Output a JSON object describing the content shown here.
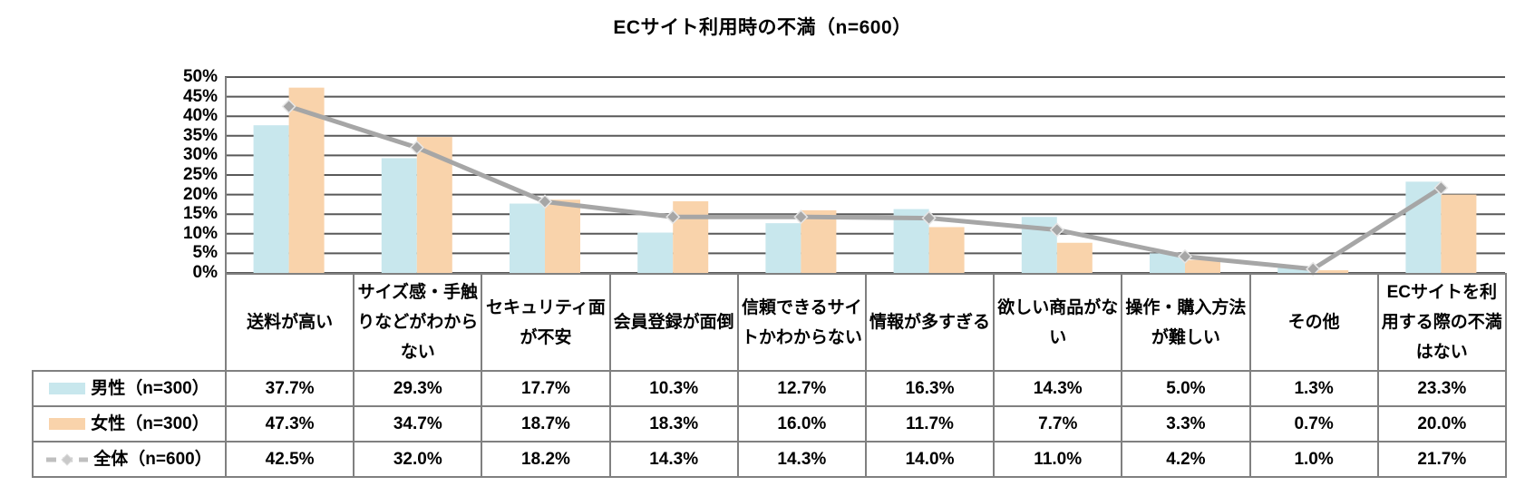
{
  "title": "ECサイト利用時の不満（n=600）",
  "chart_data": {
    "type": "bar",
    "title": "ECサイト利用時の不満（n=600）",
    "categories": [
      "送料が高い",
      "サイズ感・手触りなどがわからない",
      "セキュリティ面が不安",
      "会員登録が面倒",
      "信頼できるサイトかわからない",
      "情報が多すぎる",
      "欲しい商品がない",
      "操作・購入方法が難しい",
      "その他",
      "ECサイトを利用する際の不満はない"
    ],
    "series": [
      {
        "name": "男性（n=300）",
        "type": "bar",
        "color": "#c8e7ed",
        "values": [
          37.7,
          29.3,
          17.7,
          10.3,
          12.7,
          16.3,
          14.3,
          5.0,
          1.3,
          23.3
        ]
      },
      {
        "name": "女性（n=300）",
        "type": "bar",
        "color": "#f9d3ab",
        "values": [
          47.3,
          34.7,
          18.7,
          18.3,
          16.0,
          11.7,
          7.7,
          3.3,
          0.7,
          20.0
        ]
      },
      {
        "name": "全体（n=600）",
        "type": "line",
        "color": "#a6a6a6",
        "values": [
          42.5,
          32.0,
          18.2,
          14.3,
          14.3,
          14.0,
          11.0,
          4.2,
          1.0,
          21.7
        ]
      }
    ],
    "ylim": [
      0,
      50
    ],
    "ytick_step": 5,
    "yticks": [
      "0%",
      "5%",
      "10%",
      "15%",
      "20%",
      "25%",
      "30%",
      "35%",
      "40%",
      "45%",
      "50%"
    ],
    "value_suffix": "%",
    "grid": true,
    "gridline_color": "#595959",
    "table_border_color": "#808080",
    "legend_position": "table-rows"
  }
}
